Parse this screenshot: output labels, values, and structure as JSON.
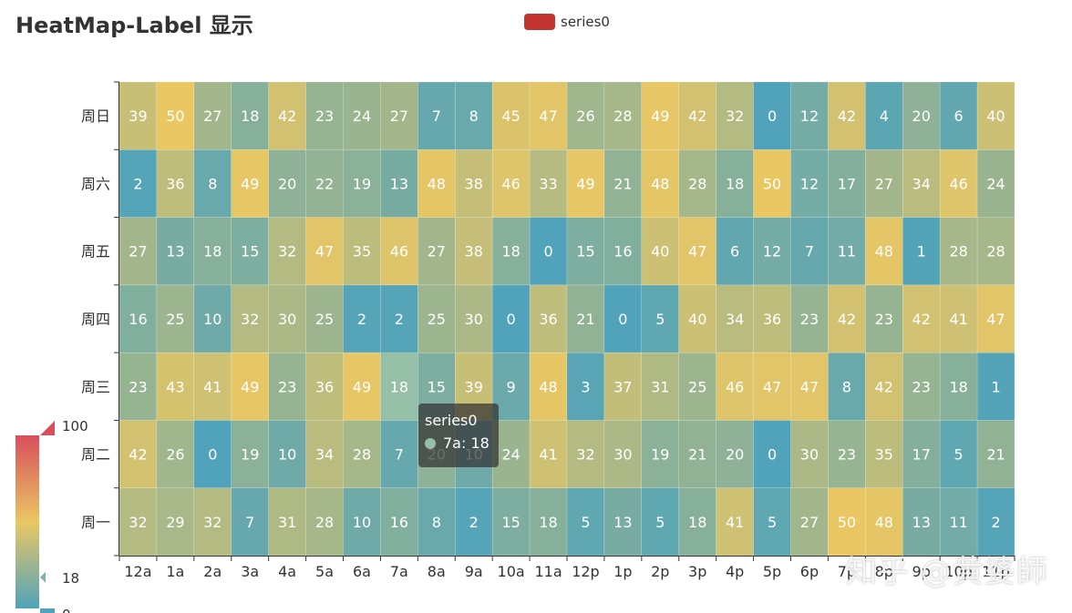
{
  "chart_data": {
    "type": "heatmap",
    "title": "HeatMap-Label 显示",
    "legend": [
      "series0"
    ],
    "legend_position": "top-center",
    "series_name": "series0",
    "x_categories": [
      "12a",
      "1a",
      "2a",
      "3a",
      "4a",
      "5a",
      "6a",
      "7a",
      "8a",
      "9a",
      "10a",
      "11a",
      "12p",
      "1p",
      "2p",
      "3p",
      "4p",
      "5p",
      "6p",
      "7p",
      "8p",
      "9p",
      "10p",
      "11p"
    ],
    "y_categories": [
      "周一",
      "周二",
      "周三",
      "周四",
      "周五",
      "周六",
      "周日"
    ],
    "values": [
      [
        32,
        29,
        32,
        7,
        31,
        28,
        10,
        16,
        8,
        2,
        15,
        18,
        5,
        13,
        5,
        18,
        41,
        5,
        27,
        50,
        48,
        13,
        11,
        2
      ],
      [
        42,
        26,
        0,
        19,
        10,
        34,
        28,
        7,
        20,
        10,
        24,
        41,
        32,
        30,
        19,
        21,
        20,
        0,
        30,
        23,
        35,
        17,
        5,
        21
      ],
      [
        23,
        43,
        41,
        49,
        23,
        36,
        49,
        18,
        15,
        39,
        9,
        48,
        3,
        37,
        31,
        25,
        46,
        47,
        47,
        8,
        42,
        23,
        18,
        1
      ],
      [
        16,
        25,
        10,
        32,
        30,
        25,
        2,
        2,
        25,
        30,
        0,
        36,
        21,
        0,
        5,
        40,
        34,
        36,
        23,
        42,
        23,
        42,
        41,
        47
      ],
      [
        27,
        13,
        18,
        15,
        32,
        47,
        35,
        46,
        27,
        38,
        18,
        0,
        15,
        16,
        40,
        47,
        6,
        12,
        7,
        11,
        48,
        1,
        28,
        28
      ],
      [
        2,
        36,
        8,
        49,
        20,
        22,
        19,
        13,
        48,
        38,
        46,
        33,
        49,
        21,
        48,
        28,
        18,
        50,
        12,
        17,
        27,
        34,
        46,
        24
      ],
      [
        39,
        50,
        27,
        18,
        42,
        23,
        24,
        27,
        7,
        8,
        45,
        47,
        26,
        28,
        49,
        42,
        32,
        0,
        12,
        42,
        4,
        20,
        6,
        40
      ]
    ],
    "highlighted_cell": {
      "x": "7a",
      "y": "周三",
      "value": 18
    },
    "visual_map": {
      "min": 0,
      "max": 100,
      "indicator": 18,
      "max_label": "100",
      "min_label": "0",
      "indicator_label": "18"
    },
    "colors": {
      "low": "#50a3ba",
      "mid": "#eac763",
      "high": "#d94e5d",
      "legend": "#c23531",
      "highlight": "#96bfa8"
    }
  },
  "tooltip": {
    "title": "series0",
    "text": "7a: 18"
  },
  "watermark": "知乎 @黄婆師"
}
